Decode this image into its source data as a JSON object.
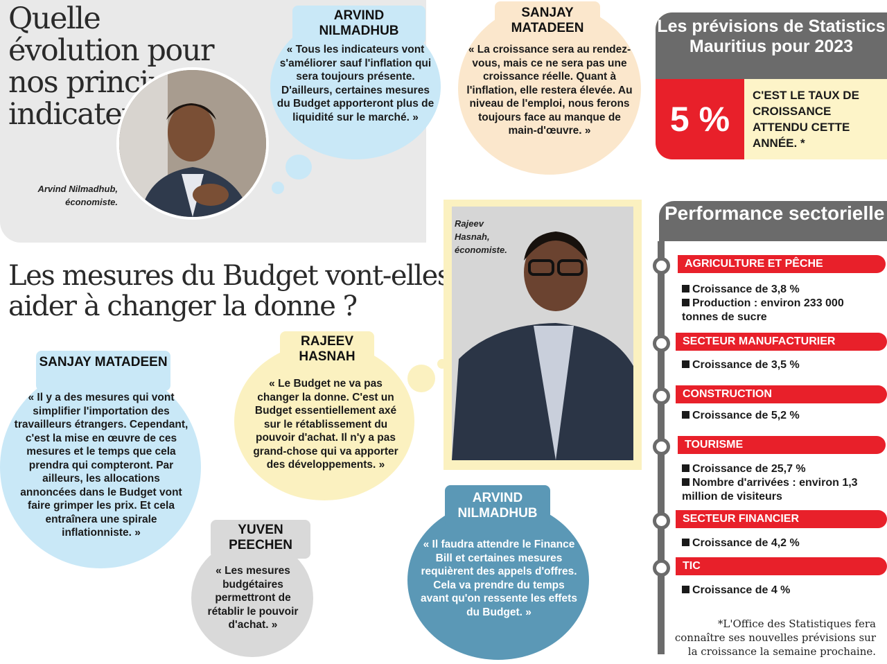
{
  "titles": {
    "indicators": "Quelle évolution pour nos principaux indicateurs",
    "budget": "Les mesures du Budget vont-elles aider à changer la donne ?"
  },
  "captions": {
    "arvind": "Arvind Nilmadhub, économiste.",
    "rajeev": "Rajeev Hasnah, économiste."
  },
  "quotes": {
    "arvind_top": {
      "name": "ARVIND NILMADHUB",
      "text": "« Tous les indicateurs vont s'améliorer sauf l'inflation qui sera toujours présente. D'ailleurs, certaines mesures du Budget apporteront plus de liquidité sur le marché. »"
    },
    "sanjay_top": {
      "name": "SANJAY MATADEEN",
      "text": "« La croissance sera au rendez-vous, mais ce ne sera pas une croissance réelle. Quant à l'inflation, elle restera élevée. Au niveau de l'emploi, nous ferons toujours face au manque de main-d'œuvre. »"
    },
    "sanjay_bottom": {
      "name": "SANJAY MATADEEN",
      "text": "« Il y a des mesures qui vont simplifier l'importation des travailleurs étrangers. Cependant, c'est la mise en œuvre de ces mesures et le temps que cela prendra qui compteront. Par ailleurs, les allocations annoncées dans le Budget vont faire grimper les prix. Et cela entraînera une spirale inflationniste. »"
    },
    "rajeev": {
      "name": "RAJEEV HASNAH",
      "text": "« Le Budget ne va pas changer la donne. C'est un Budget essentiellement axé sur le rétablissement du pouvoir d'achat. Il n'y a pas grand-chose qui va apporter des développements. »"
    },
    "yuven": {
      "name": "YUVEN PEECHEN",
      "text": "« Les mesures budgétaires permettront de rétablir le pouvoir d'achat. »"
    },
    "arvind_bottom": {
      "name": "ARVIND NILMADHUB",
      "text": "« Il faudra attendre le Finance Bill et certaines mesures requièrent des appels d'offres. Cela va prendre du temps avant qu'on ressente les effets du Budget. »"
    }
  },
  "forecast": {
    "title": "Les prévisions de Statistics Mauritius pour 2023",
    "value": "5 %",
    "text": "C'EST LE TAUX DE CROISSANCE ATTENDU CETTE ANNÉE. *"
  },
  "performance": {
    "title": "Performance sectorielle",
    "sectors": [
      {
        "name": "AGRICULTURE ET PÊCHE",
        "items": [
          "Croissance de 3,8 %",
          "Production : environ 233 000 tonnes de sucre"
        ]
      },
      {
        "name": "SECTEUR MANUFACTURIER",
        "items": [
          "Croissance de 3,5 %"
        ]
      },
      {
        "name": "CONSTRUCTION",
        "items": [
          "Croissance de 5,2 %"
        ]
      },
      {
        "name": "TOURISME",
        "items": [
          "Croissance de 25,7 %",
          "Nombre d'arrivées : environ 1,3 million de visiteurs"
        ]
      },
      {
        "name": "SECTEUR FINANCIER",
        "items": [
          "Croissance de 4,2 %"
        ]
      },
      {
        "name": "TIC",
        "items": [
          "Croissance de 4 %"
        ]
      }
    ],
    "footnote": "*L'Office des Statistiques fera connaître ses nouvelles prévisions sur la croissance la semaine prochaine."
  },
  "colors": {
    "red": "#e8202a",
    "grey": "#6b6b6b",
    "blue": "#c9e8f7",
    "peach": "#fbe7cc",
    "yellow": "#fbf1c0",
    "lightgrey": "#d9d9d9",
    "steel": "#5b98b6"
  }
}
